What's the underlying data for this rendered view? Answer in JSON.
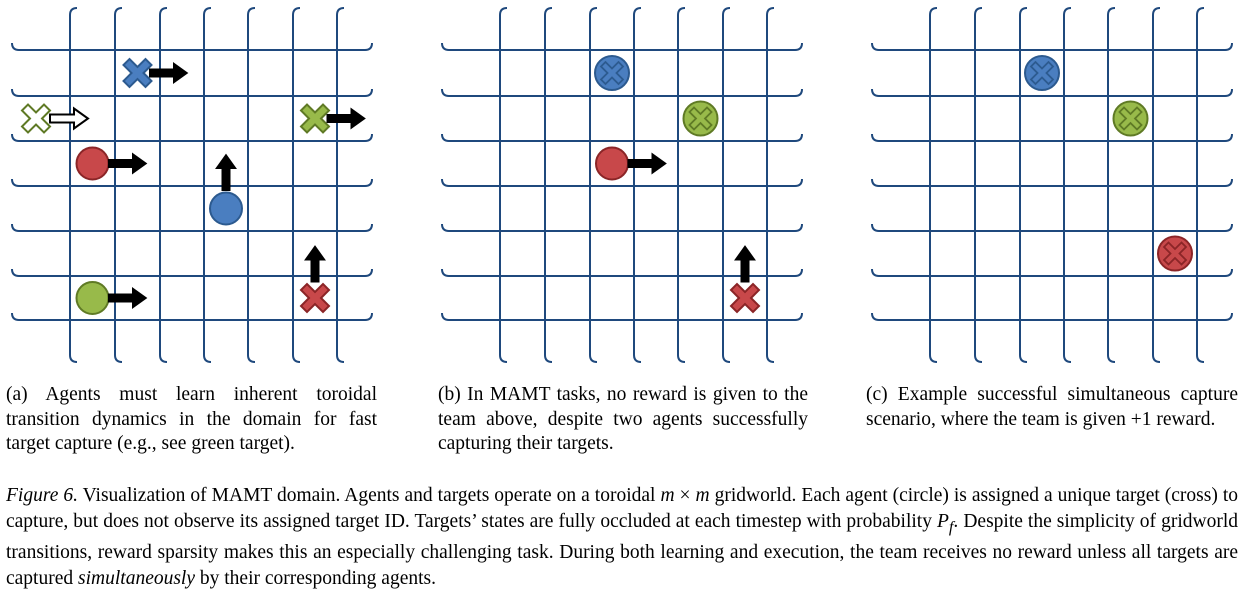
{
  "colors": {
    "grid": "#1f497d",
    "blue": "#4a7ec0",
    "blue_dark": "#2c5a8f",
    "red": "#c8484a",
    "red_dark": "#8b2527",
    "green": "#98ba4a",
    "green_dark": "#5f7a25",
    "arrow": "#000000"
  },
  "panels": [
    {
      "id": "a",
      "caption": "(a) Agents must learn inherent toroidal transition dynamics in the domain for fast target capture (e.g., see green target).",
      "items": [
        {
          "kind": "target",
          "color": "blue",
          "col": 2,
          "row": 1,
          "arrow": "right"
        },
        {
          "kind": "target",
          "color": "white",
          "col": 0,
          "row": 2,
          "arrow": "right-hollow"
        },
        {
          "kind": "target",
          "color": "green",
          "col": 6,
          "row": 2,
          "arrow": "right"
        },
        {
          "kind": "agent",
          "color": "red",
          "col": 1,
          "row": 3,
          "arrow": "right"
        },
        {
          "kind": "agent",
          "color": "blue",
          "col": 4,
          "row": 4,
          "arrow": "up"
        },
        {
          "kind": "agent",
          "color": "green",
          "col": 1,
          "row": 6,
          "arrow": "right"
        },
        {
          "kind": "target",
          "color": "red",
          "col": 6,
          "row": 6,
          "arrow": "up"
        }
      ]
    },
    {
      "id": "b",
      "caption": "(b) In MAMT tasks, no reward is given to the team above, despite two agents successfully capturing their targets.",
      "items": [
        {
          "kind": "captured",
          "color": "blue",
          "col": 3,
          "row": 1,
          "arrow": "none"
        },
        {
          "kind": "captured",
          "color": "green",
          "col": 5,
          "row": 2,
          "arrow": "none"
        },
        {
          "kind": "agent",
          "color": "red",
          "col": 3,
          "row": 3,
          "arrow": "right"
        },
        {
          "kind": "target",
          "color": "red",
          "col": 6,
          "row": 6,
          "arrow": "up"
        }
      ]
    },
    {
      "id": "c",
      "caption": "(c) Example successful simultaneous capture scenario, where the team is given +1 reward.",
      "items": [
        {
          "kind": "captured",
          "color": "blue",
          "col": 3,
          "row": 1,
          "arrow": "none"
        },
        {
          "kind": "captured",
          "color": "green",
          "col": 5,
          "row": 2,
          "arrow": "none"
        },
        {
          "kind": "captured",
          "color": "red",
          "col": 6,
          "row": 5,
          "arrow": "none"
        }
      ]
    }
  ],
  "caption": {
    "label": "Figure 6.",
    "text1": " Visualization of MAMT domain. Agents and targets operate on a toroidal ",
    "math_m1": "m",
    "times": " × ",
    "math_m2": "m",
    "text2": " gridworld. Each agent (circle) is assigned a unique target (cross) to capture, but does not observe its assigned target ID. Targets’ states are fully occluded at each timestep with probability ",
    "math_p": "P",
    "math_sub": "f",
    "text3": ". Despite the simplicity of gridworld transitions, reward sparsity makes this an especially challenging task. During both learning and execution, the team receives no reward unless all targets are captured ",
    "emph": "simultaneously",
    "text4": " by their corresponding agents."
  }
}
